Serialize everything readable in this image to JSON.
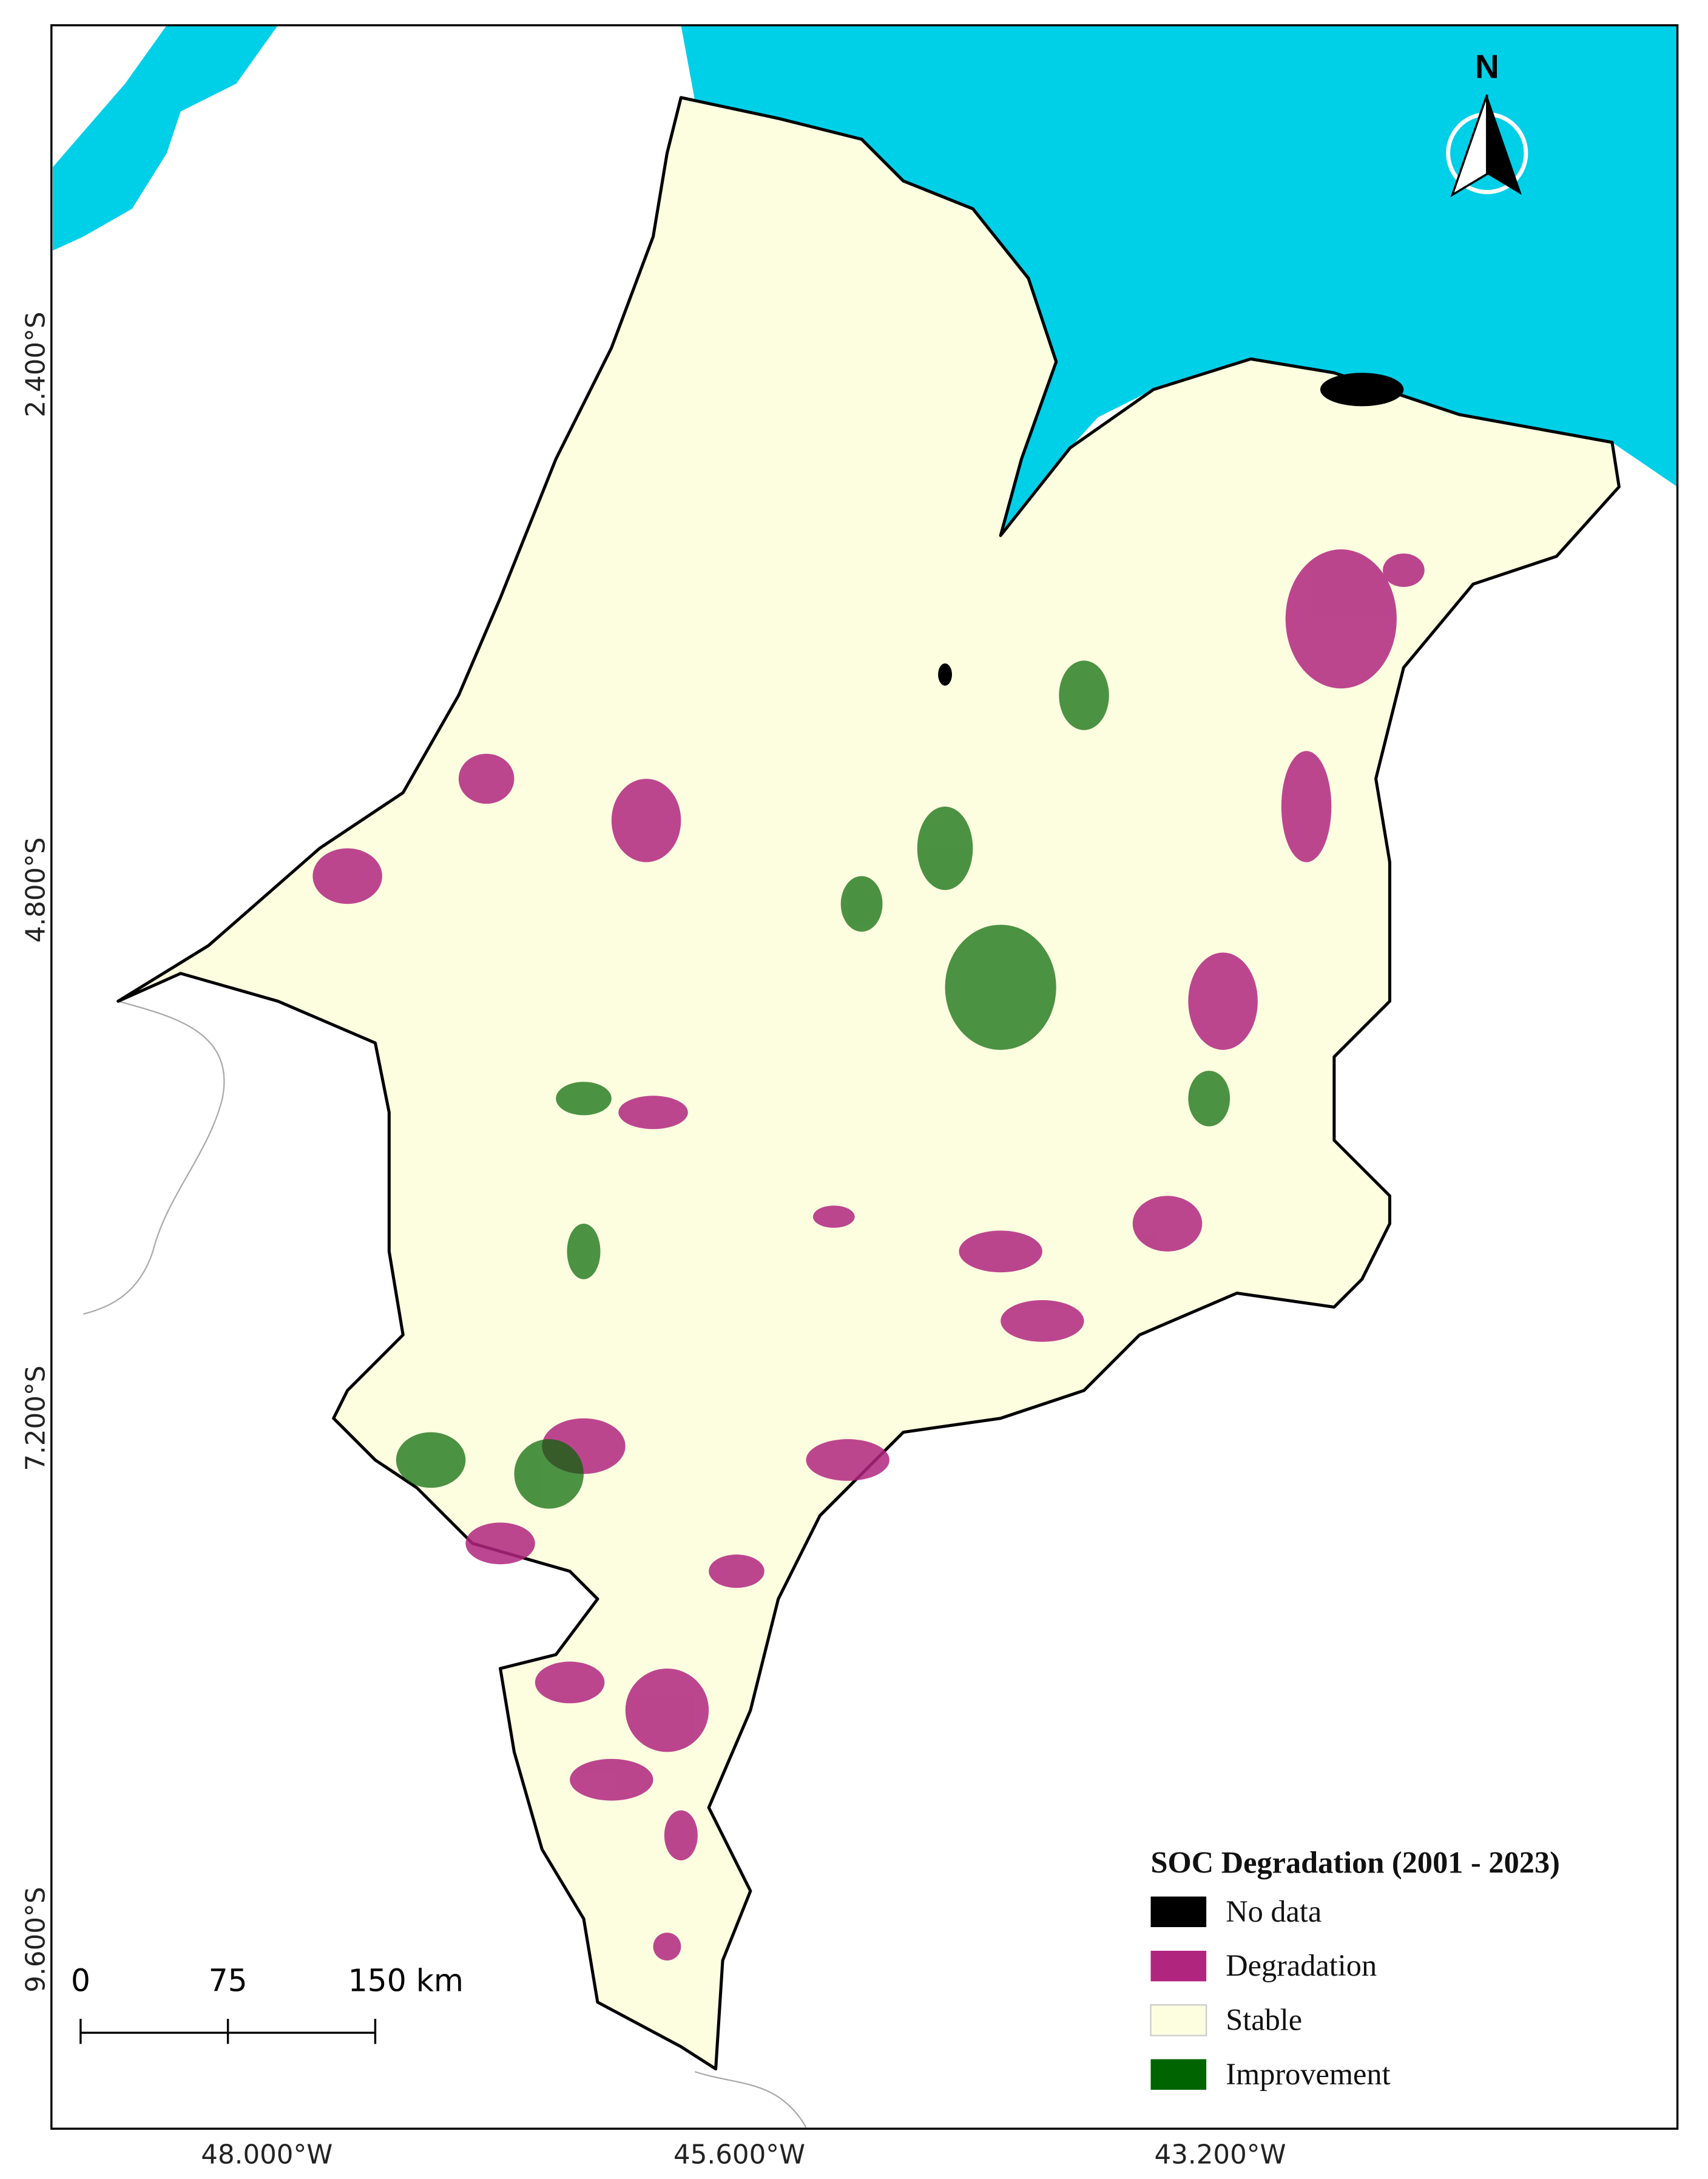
{
  "north_arrow": {
    "label": "N"
  },
  "legend": {
    "title": "SOC Degradation (2001 - 2023)",
    "items": [
      {
        "label": "No data",
        "color": "#000000"
      },
      {
        "label": "Degradation",
        "color": "#b0267f"
      },
      {
        "label": "Stable",
        "color": "#fdfde0"
      },
      {
        "label": "Improvement",
        "color": "#006400"
      }
    ]
  },
  "scale_bar": {
    "labels": [
      "0",
      "75",
      "150 km"
    ]
  },
  "axes": {
    "latitude_labels": [
      "2.400°S",
      "4.800°S",
      "7.200°S",
      "9.600°S"
    ],
    "longitude_labels": [
      "48.000°W",
      "45.600°W",
      "43.200°W"
    ]
  }
}
